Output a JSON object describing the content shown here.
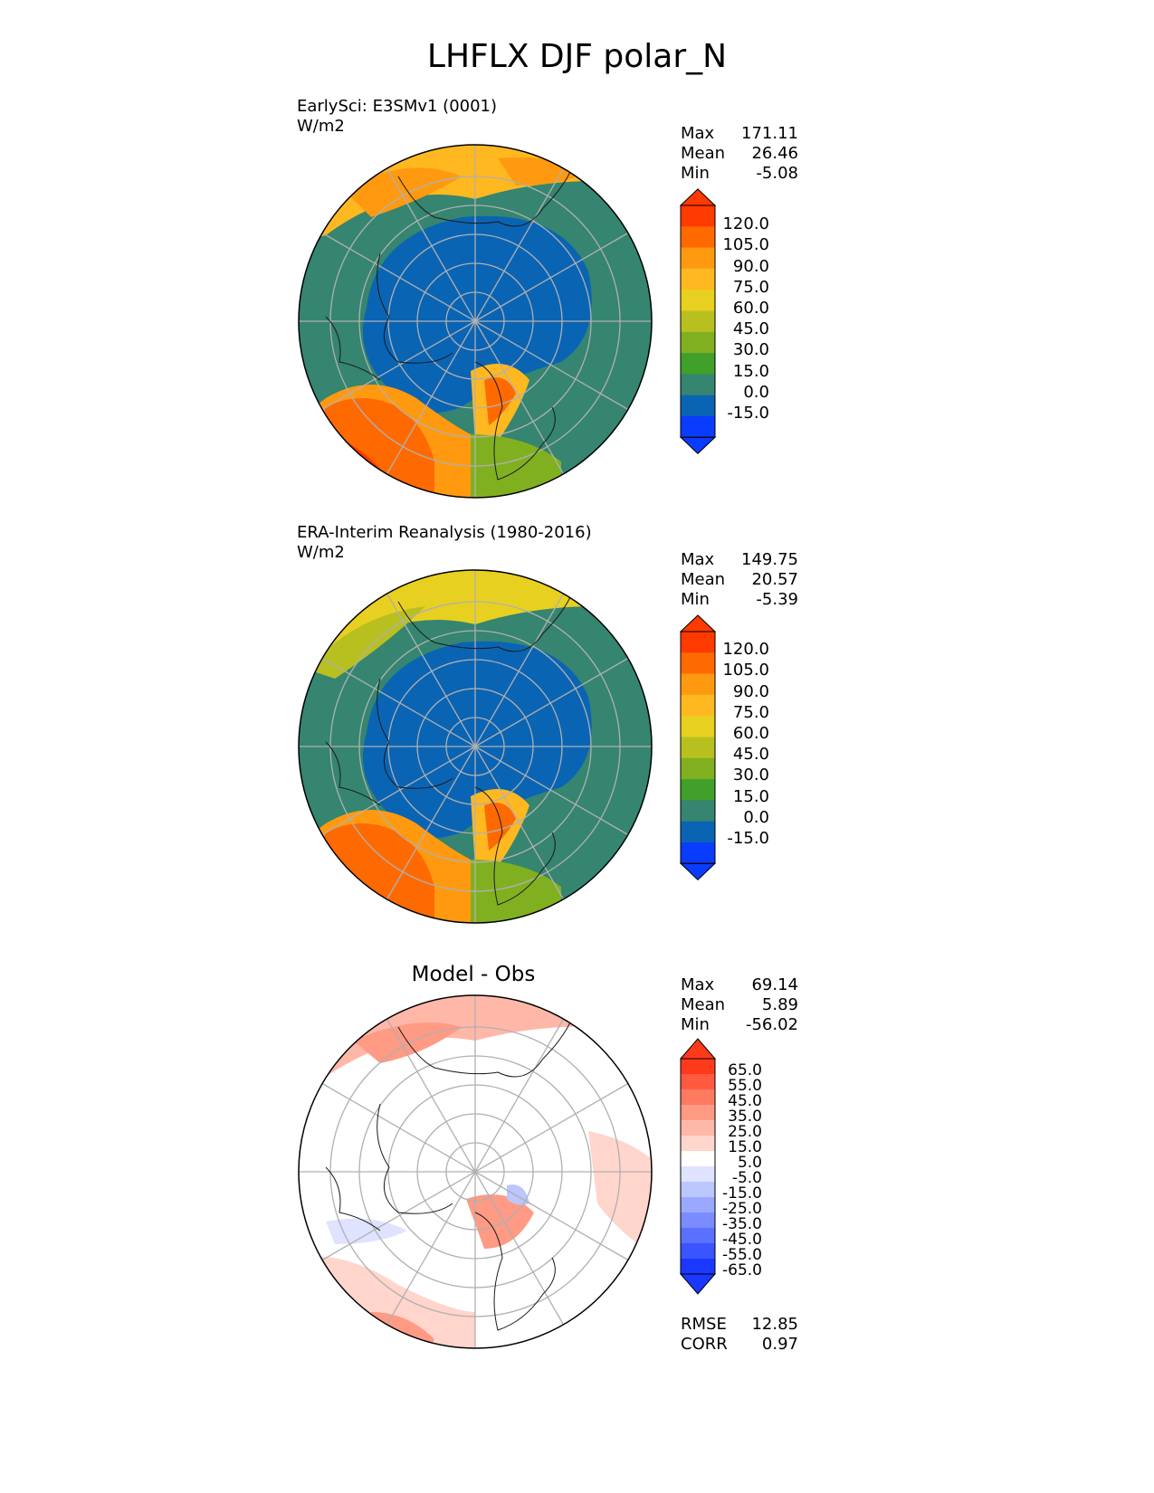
{
  "title": "LHFLX DJF polar_N",
  "panels": [
    {
      "id": "test",
      "title_lines": [
        "EarlySci: E3SMv1 (0001)",
        "W/m2"
      ],
      "stats": [
        {
          "label": "Max",
          "value": "171.11"
        },
        {
          "label": "Mean",
          "value": "26.46"
        },
        {
          "label": "Min",
          "value": "-5.08"
        }
      ],
      "colorbar": {
        "tick_labels": [
          "120.0",
          "105.0",
          "90.0",
          "75.0",
          "60.0",
          "45.0",
          "30.0",
          "15.0",
          "0.0",
          "-15.0"
        ],
        "colors": [
          "#ff3a00",
          "#ff6a00",
          "#ff9a10",
          "#ffb820",
          "#e8d020",
          "#b8c020",
          "#80b020",
          "#40a02a",
          "#358570",
          "#0a64b4",
          "#0a3cff",
          "#ff3a00"
        ]
      }
    },
    {
      "id": "ref",
      "title_lines": [
        "ERA-Interim Reanalysis (1980-2016)",
        "W/m2"
      ],
      "stats": [
        {
          "label": "Max",
          "value": "149.75"
        },
        {
          "label": "Mean",
          "value": "20.57"
        },
        {
          "label": "Min",
          "value": "-5.39"
        }
      ],
      "colorbar": {
        "tick_labels": [
          "120.0",
          "105.0",
          "90.0",
          "75.0",
          "60.0",
          "45.0",
          "30.0",
          "15.0",
          "0.0",
          "-15.0"
        ],
        "colors": [
          "#ff3a00",
          "#ff6a00",
          "#ff9a10",
          "#ffb820",
          "#e8d020",
          "#b8c020",
          "#80b020",
          "#40a02a",
          "#358570",
          "#0a64b4",
          "#0a3cff",
          "#ff3a00"
        ]
      }
    },
    {
      "id": "diff",
      "center_title": "Model - Obs",
      "stats": [
        {
          "label": "Max",
          "value": "69.14"
        },
        {
          "label": "Mean",
          "value": "5.89"
        },
        {
          "label": "Min",
          "value": "-56.02"
        }
      ],
      "colorbar": {
        "tick_labels": [
          "65.0",
          "55.0",
          "45.0",
          "35.0",
          "25.0",
          "15.0",
          "5.0",
          "-5.0",
          "-15.0",
          "-25.0",
          "-35.0",
          "-45.0",
          "-55.0",
          "-65.0"
        ],
        "colors": [
          "#ff3a1a",
          "#ff5a40",
          "#ff7a60",
          "#ff9a85",
          "#ffb8a8",
          "#ffd5cc",
          "#ffffff",
          "#dfe3ff",
          "#bcc6ff",
          "#9aa8ff",
          "#7a8cff",
          "#5a70ff",
          "#3a54ff",
          "#1a38ff"
        ]
      },
      "metrics": [
        {
          "label": "RMSE",
          "value": "12.85"
        },
        {
          "label": "CORR",
          "value": "0.97"
        }
      ]
    }
  ],
  "chart_data": [
    {
      "type": "heatmap",
      "title": "EarlySci: E3SMv1 (0001)",
      "units": "W/m2",
      "projection": "north polar stereographic",
      "levels": [
        -15,
        0,
        15,
        30,
        45,
        60,
        75,
        90,
        105,
        120
      ],
      "extend": "both",
      "stats": {
        "max": 171.11,
        "mean": 26.46,
        "min": -5.08
      }
    },
    {
      "type": "heatmap",
      "title": "ERA-Interim Reanalysis (1980-2016)",
      "units": "W/m2",
      "projection": "north polar stereographic",
      "levels": [
        -15,
        0,
        15,
        30,
        45,
        60,
        75,
        90,
        105,
        120
      ],
      "extend": "both",
      "stats": {
        "max": 149.75,
        "mean": 20.57,
        "min": -5.39
      }
    },
    {
      "type": "heatmap",
      "title": "Model - Obs",
      "projection": "north polar stereographic",
      "levels": [
        -65,
        -55,
        -45,
        -35,
        -25,
        -15,
        -5,
        5,
        15,
        25,
        35,
        45,
        55,
        65
      ],
      "extend": "both",
      "stats": {
        "max": 69.14,
        "mean": 5.89,
        "min": -56.02,
        "rmse": 12.85,
        "corr": 0.97
      }
    }
  ]
}
